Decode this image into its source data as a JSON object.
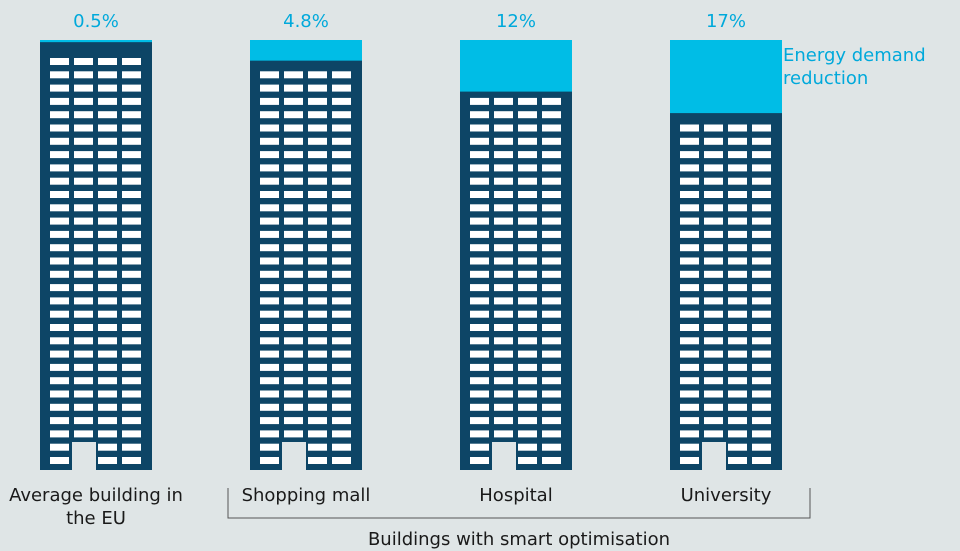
{
  "chart_data": {
    "type": "bar",
    "categories": [
      "Average building in the EU",
      "Shopping mall",
      "Hospital",
      "University"
    ],
    "values": [
      0.5,
      4.8,
      12,
      17
    ],
    "value_labels": [
      "0.5%",
      "4.8%",
      "12%",
      "17%"
    ],
    "color": "#00bde6",
    "ylim": [
      0,
      100
    ],
    "annotation": "Energy demand reduction",
    "group_label": "Buildings with smart optimisation"
  }
}
